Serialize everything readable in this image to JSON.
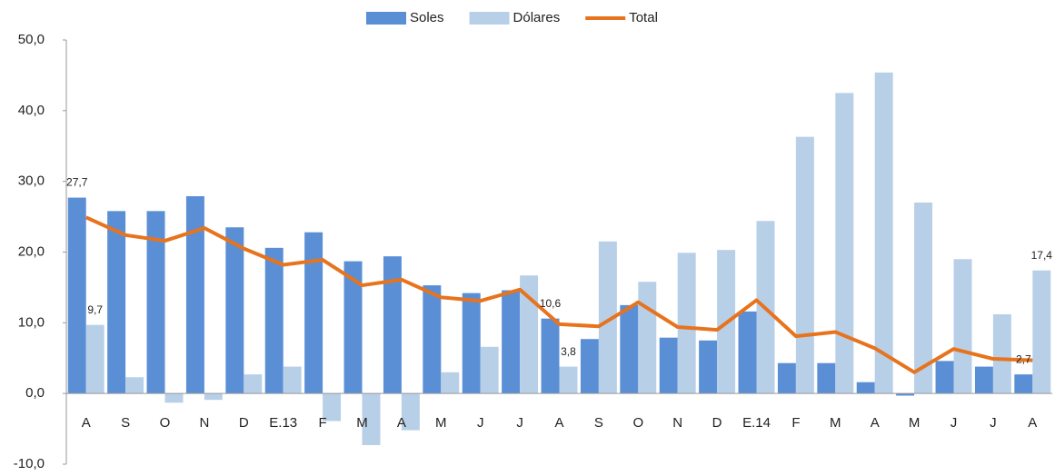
{
  "chart_data": {
    "type": "bar",
    "categories": [
      "A",
      "S",
      "O",
      "N",
      "D",
      "E.13",
      "F",
      "M",
      "A",
      "M",
      "J",
      "J",
      "A",
      "S",
      "O",
      "N",
      "D",
      "E.14",
      "F",
      "M",
      "A",
      "M",
      "J",
      "J",
      "A"
    ],
    "series": [
      {
        "name": "Soles",
        "color": "#5a8fd6",
        "type": "bar",
        "values": [
          27.7,
          25.8,
          25.8,
          27.9,
          23.5,
          20.6,
          22.8,
          18.7,
          19.4,
          15.3,
          14.2,
          14.6,
          10.6,
          7.7,
          12.5,
          7.9,
          7.5,
          11.6,
          4.3,
          4.3,
          1.6,
          -0.3,
          4.6,
          3.8,
          2.7
        ],
        "value_labels": [
          "27,7",
          null,
          null,
          null,
          null,
          null,
          null,
          null,
          null,
          null,
          null,
          null,
          "10,6",
          null,
          null,
          null,
          null,
          null,
          null,
          null,
          null,
          null,
          null,
          null,
          "2,7"
        ]
      },
      {
        "name": "Dólares",
        "color": "#b8cfe8",
        "type": "bar",
        "values": [
          9.7,
          2.3,
          -1.3,
          -0.9,
          2.7,
          3.8,
          -3.9,
          -7.3,
          -5.2,
          3.0,
          6.6,
          16.7,
          3.8,
          21.5,
          15.8,
          19.9,
          20.3,
          24.4,
          36.3,
          42.5,
          45.4,
          27.0,
          19.0,
          11.2,
          17.4
        ],
        "value_labels": [
          "9,7",
          null,
          null,
          null,
          null,
          null,
          null,
          null,
          null,
          null,
          null,
          null,
          "3,8",
          null,
          null,
          null,
          null,
          null,
          null,
          null,
          null,
          null,
          null,
          null,
          "17,4"
        ]
      },
      {
        "name": "Total",
        "color": "#e8731d",
        "type": "line",
        "values": [
          24.9,
          22.4,
          21.6,
          23.4,
          20.5,
          18.2,
          18.9,
          15.3,
          16.1,
          13.6,
          13.1,
          14.7,
          9.8,
          9.5,
          12.9,
          9.4,
          9.0,
          13.2,
          8.1,
          8.7,
          6.4,
          3.0,
          6.3,
          4.9,
          4.7
        ]
      }
    ],
    "ylim": [
      -10,
      50
    ],
    "yticks": [
      {
        "value": -10,
        "label": "-10,0"
      },
      {
        "value": 0,
        "label": "0,0"
      },
      {
        "value": 10,
        "label": "10,0"
      },
      {
        "value": 20,
        "label": "20,0"
      },
      {
        "value": 30,
        "label": "30,0"
      },
      {
        "value": 40,
        "label": "40,0"
      },
      {
        "value": 50,
        "label": "50,0"
      }
    ],
    "legend": "top"
  }
}
